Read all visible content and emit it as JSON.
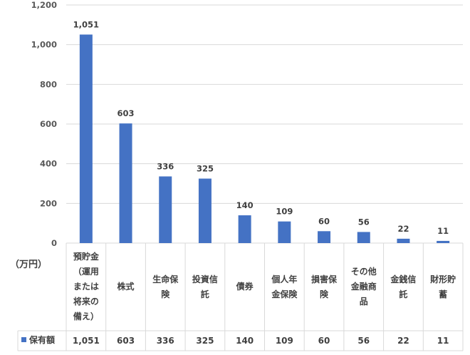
{
  "chart_data": {
    "type": "bar",
    "unit_label": "（万円）",
    "categories": [
      "預貯金（運用または将来の備え）",
      "株式",
      "生命保険",
      "投資信託",
      "債券",
      "個人年金保険",
      "損害保険",
      "その他金融商品",
      "金銭信託",
      "財形貯蓄"
    ],
    "series": [
      {
        "name": "保有額",
        "values": [
          1051,
          603,
          336,
          325,
          140,
          109,
          60,
          56,
          22,
          11
        ],
        "color": "#4472c4"
      }
    ],
    "data_labels": [
      "1,051",
      "603",
      "336",
      "325",
      "140",
      "109",
      "60",
      "56",
      "22",
      "11"
    ],
    "yticks": [
      "0",
      "200",
      "400",
      "600",
      "800",
      "1,000",
      "1,200"
    ],
    "ylim": [
      0,
      1200
    ],
    "grid": true,
    "legend": "bottom-left (data table)"
  }
}
